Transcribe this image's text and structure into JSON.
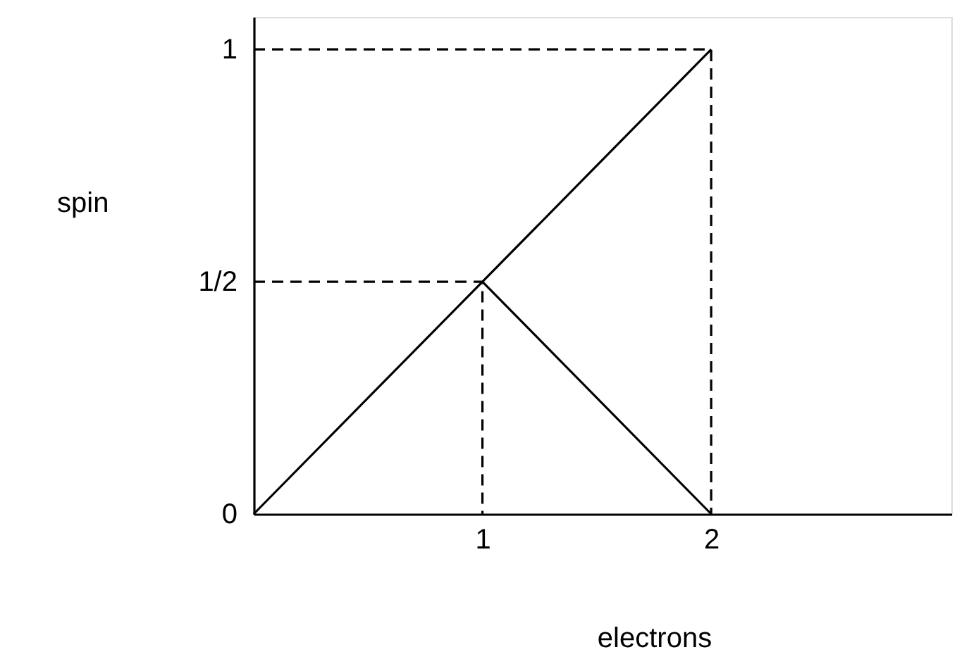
{
  "chart_data": {
    "type": "line",
    "xlabel": "electrons",
    "ylabel": "spin",
    "xlim": [
      0,
      3.05
    ],
    "ylim": [
      0,
      1.07
    ],
    "xticks": [
      1,
      2
    ],
    "yticks": [
      0,
      {
        "value": 0.5,
        "label": "1/2"
      },
      1
    ],
    "grid": false,
    "marker": "none",
    "series": [
      {
        "color": "#000000",
        "line_style": "solid",
        "x": [
          0,
          1,
          2
        ],
        "values": [
          0,
          0.5,
          1
        ]
      },
      {
        "color": "#000000",
        "line_style": "solid",
        "x": [
          1,
          2
        ],
        "values": [
          0.5,
          0
        ]
      },
      {
        "color": "#000000",
        "line_style": "dashed",
        "x": [
          0,
          2,
          2
        ],
        "values": [
          1,
          1,
          0
        ]
      },
      {
        "color": "#000000",
        "line_style": "dashed",
        "x": [
          0,
          1,
          1
        ],
        "values": [
          0.5,
          0.5,
          0
        ]
      }
    ]
  }
}
